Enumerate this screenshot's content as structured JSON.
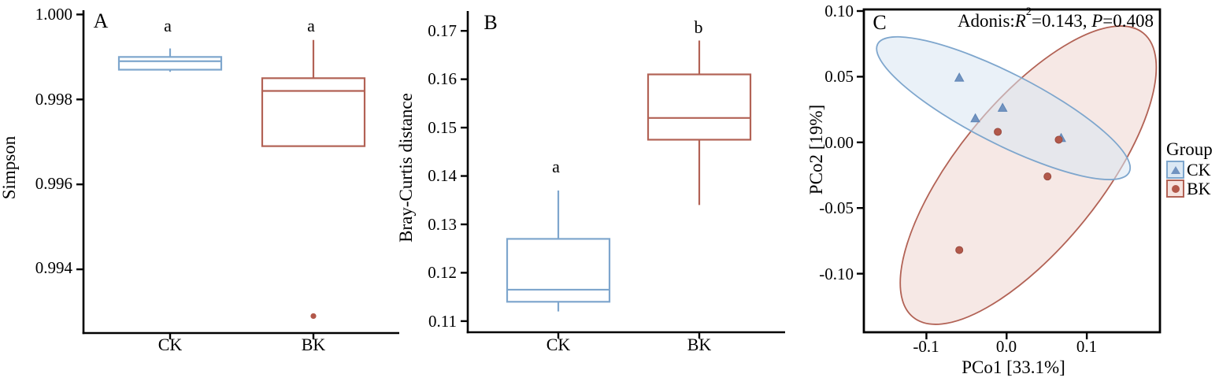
{
  "chart_data": {
    "colors": {
      "blue": "#7ea6cd",
      "red": "#b26255",
      "blue_marker": "#7193c0",
      "red_marker": "#b2584a",
      "blue_fill": "#d9e6f2",
      "red_fill": "#f0d8d3",
      "axis": "#000000"
    },
    "panels": [
      {
        "label": "A",
        "type": "boxplot",
        "ylabel": "Simpson",
        "ylim": [
          0.9925,
          1.0001
        ],
        "yticks": [
          {
            "v": 1.0,
            "label": "1.000"
          },
          {
            "v": 0.998,
            "label": "0.998"
          },
          {
            "v": 0.996,
            "label": "0.996"
          },
          {
            "v": 0.994,
            "label": "0.994"
          }
        ],
        "categories": [
          "CK",
          "BK"
        ],
        "groups": [
          {
            "name": "CK",
            "color_key": "blue",
            "sig": "a",
            "whislo": 0.99865,
            "q1": 0.9987,
            "med": 0.9989,
            "q3": 0.999,
            "whishi": 0.9992,
            "outliers": []
          },
          {
            "name": "BK",
            "color_key": "red",
            "sig": "a",
            "whislo": 0.9969,
            "q1": 0.9969,
            "med": 0.9982,
            "q3": 0.9985,
            "whishi": 0.9994,
            "outliers": [
              0.9929
            ]
          }
        ]
      },
      {
        "label": "B",
        "type": "boxplot",
        "ylabel": "Bray-Curtis distance",
        "ylim": [
          0.1077,
          0.1741
        ],
        "yticks": [
          {
            "v": 0.17,
            "label": "0.17"
          },
          {
            "v": 0.16,
            "label": "0.16"
          },
          {
            "v": 0.15,
            "label": "0.15"
          },
          {
            "v": 0.14,
            "label": "0.14"
          },
          {
            "v": 0.13,
            "label": "0.13"
          },
          {
            "v": 0.12,
            "label": "0.12"
          },
          {
            "v": 0.11,
            "label": "0.11"
          }
        ],
        "categories": [
          "CK",
          "BK"
        ],
        "groups": [
          {
            "name": "CK",
            "color_key": "blue",
            "sig": "a",
            "whislo": 0.112,
            "q1": 0.114,
            "med": 0.1165,
            "q3": 0.127,
            "whishi": 0.137,
            "outliers": []
          },
          {
            "name": "BK",
            "color_key": "red",
            "sig": "b",
            "whislo": 0.134,
            "q1": 0.1475,
            "med": 0.152,
            "q3": 0.161,
            "whishi": 0.168,
            "outliers": []
          }
        ]
      },
      {
        "label": "C",
        "type": "scatter",
        "xlabel": "PCo1 [33.1%]",
        "ylabel": "PCo2 [19%]",
        "xlim": [
          -0.178,
          0.1912
        ],
        "ylim": [
          -0.1446,
          0.1012
        ],
        "xticks": [
          {
            "v": -0.1,
            "label": "-0.1"
          },
          {
            "v": 0.0,
            "label": "0.0"
          },
          {
            "v": 0.1,
            "label": "0.1"
          }
        ],
        "yticks": [
          {
            "v": 0.1,
            "label": "0.10"
          },
          {
            "v": 0.05,
            "label": "0.05"
          },
          {
            "v": 0.0,
            "label": "0.00"
          },
          {
            "v": -0.05,
            "label": "-0.05"
          },
          {
            "v": -0.1,
            "label": "-0.10"
          }
        ],
        "annotation": {
          "full_text": "Adonis:R2=0.143, P=0.408",
          "prefix": "Adonis:",
          "r_label": "R",
          "r_sup": "2",
          "r_rest": "=0.143, ",
          "p_label": "P",
          "p_rest": "=0.408"
        },
        "series": [
          {
            "name": "CK",
            "marker": "triangle",
            "color_key": "blue",
            "points": [
              [
                -0.059,
                0.049
              ],
              [
                -0.005,
                0.026
              ],
              [
                -0.039,
                0.018
              ],
              [
                0.068,
                0.003
              ]
            ]
          },
          {
            "name": "BK",
            "marker": "circle",
            "color_key": "red",
            "points": [
              [
                -0.011,
                0.008
              ],
              [
                0.065,
                0.002
              ],
              [
                0.051,
                -0.026
              ],
              [
                -0.059,
                -0.082
              ]
            ]
          }
        ],
        "ellipses": [
          {
            "group": "CK",
            "cx": -0.004,
            "cy": 0.026,
            "rx": 0.176,
            "ry": 0.044,
            "angle_deg": 27
          },
          {
            "group": "BK",
            "cx": 0.027,
            "cy": -0.025,
            "rx": 0.228,
            "ry": 0.09,
            "angle_deg": -51
          }
        ],
        "legend": {
          "title": "Group",
          "entries": [
            {
              "label": "CK",
              "marker": "triangle"
            },
            {
              "label": "BK",
              "marker": "circle"
            }
          ]
        }
      }
    ]
  }
}
